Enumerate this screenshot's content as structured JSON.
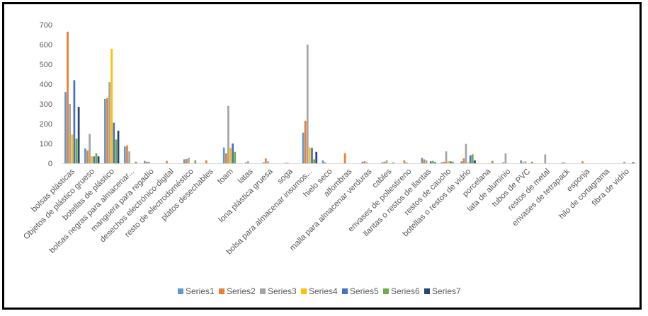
{
  "chart_data": {
    "type": "bar",
    "title": "",
    "xlabel": "",
    "ylabel": "",
    "ylim": [
      0,
      700
    ],
    "yticks": [
      0,
      100,
      200,
      300,
      400,
      500,
      600,
      700
    ],
    "grid": false,
    "legend_position": "bottom",
    "categories": [
      "bolsas plásticas",
      "Objetos de plástico grueso",
      "botellas de plástico",
      "bolsas negras para almacenar...",
      "manguera para regadío",
      "desechos electrónico-digital",
      "resto de electrodoméstico",
      "platos desechables",
      "foam",
      "latas",
      "lona plástica gruesa",
      "soga",
      "bolsa para almacenar insumos...",
      "hielo seco",
      "alfombras",
      "malla para almacenar verduras",
      "cables",
      "envases de poliestireno",
      "llantas o restos de llantas",
      "restos de caucho",
      "botellas o restos de vidrio",
      "porcelana",
      "lata de aluminio",
      "tubos de PVC",
      "restos de metal",
      "envases de tetrapack",
      "esponja",
      "hilo de cortagrama",
      "fibra de vidrio"
    ],
    "series": [
      {
        "name": "Series1",
        "color": "#5B9BD5",
        "values": [
          360,
          75,
          325,
          85,
          12,
          0,
          20,
          0,
          80,
          0,
          5,
          0,
          155,
          15,
          0,
          8,
          5,
          0,
          28,
          5,
          10,
          0,
          0,
          15,
          0,
          0,
          0,
          0,
          0
        ]
      },
      {
        "name": "Series2",
        "color": "#ED7D31",
        "values": [
          665,
          65,
          330,
          90,
          8,
          12,
          22,
          15,
          50,
          5,
          25,
          3,
          215,
          5,
          50,
          10,
          8,
          15,
          20,
          8,
          25,
          0,
          5,
          5,
          0,
          5,
          10,
          0,
          0
        ]
      },
      {
        "name": "Series3",
        "color": "#A5A5A5",
        "values": [
          300,
          148,
          410,
          60,
          8,
          0,
          28,
          0,
          290,
          10,
          10,
          3,
          600,
          0,
          0,
          5,
          15,
          5,
          15,
          60,
          98,
          0,
          50,
          10,
          45,
          3,
          0,
          0,
          8
        ]
      },
      {
        "name": "Series4",
        "color": "#FFC000",
        "values": [
          145,
          35,
          578,
          0,
          0,
          0,
          0,
          0,
          78,
          0,
          0,
          0,
          80,
          0,
          0,
          0,
          0,
          0,
          0,
          12,
          5,
          0,
          0,
          0,
          0,
          0,
          0,
          0,
          0
        ]
      },
      {
        "name": "Series5",
        "color": "#4472C4",
        "values": [
          420,
          35,
          205,
          0,
          0,
          0,
          0,
          0,
          100,
          0,
          0,
          0,
          78,
          0,
          0,
          0,
          0,
          0,
          10,
          10,
          40,
          0,
          0,
          0,
          0,
          0,
          0,
          0,
          0
        ]
      },
      {
        "name": "Series6",
        "color": "#70AD47",
        "values": [
          125,
          50,
          120,
          8,
          0,
          0,
          15,
          0,
          58,
          0,
          0,
          0,
          20,
          0,
          0,
          0,
          5,
          0,
          12,
          8,
          45,
          12,
          0,
          8,
          0,
          0,
          0,
          0,
          0
        ]
      },
      {
        "name": "Series7",
        "color": "#264478",
        "values": [
          285,
          35,
          165,
          0,
          0,
          0,
          0,
          0,
          0,
          0,
          0,
          0,
          58,
          0,
          0,
          0,
          0,
          0,
          5,
          0,
          15,
          0,
          0,
          0,
          0,
          0,
          0,
          0,
          5
        ]
      }
    ]
  }
}
